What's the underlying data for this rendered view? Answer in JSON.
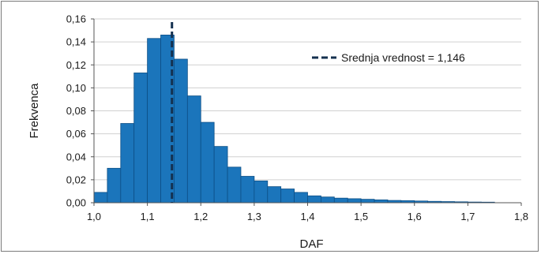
{
  "chart_data": {
    "type": "bar",
    "xlabel": "DAF",
    "ylabel": "Frekvenca",
    "xlim": [
      1.0,
      1.8
    ],
    "ylim": [
      0,
      0.16
    ],
    "bin_width": 0.025,
    "x_ticks": [
      "1,0",
      "1,1",
      "1,2",
      "1,3",
      "1,4",
      "1,5",
      "1,6",
      "1,7",
      "1,8"
    ],
    "y_ticks": [
      "0,00",
      "0,02",
      "0,04",
      "0,06",
      "0,08",
      "0,10",
      "0,12",
      "0,14",
      "0,16"
    ],
    "grid": true,
    "bars": [
      {
        "x": 1.0,
        "value": 0.009
      },
      {
        "x": 1.025,
        "value": 0.03
      },
      {
        "x": 1.05,
        "value": 0.069
      },
      {
        "x": 1.075,
        "value": 0.113
      },
      {
        "x": 1.1,
        "value": 0.143
      },
      {
        "x": 1.125,
        "value": 0.146
      },
      {
        "x": 1.15,
        "value": 0.125
      },
      {
        "x": 1.175,
        "value": 0.093
      },
      {
        "x": 1.2,
        "value": 0.07
      },
      {
        "x": 1.225,
        "value": 0.049
      },
      {
        "x": 1.25,
        "value": 0.031
      },
      {
        "x": 1.275,
        "value": 0.023
      },
      {
        "x": 1.3,
        "value": 0.019
      },
      {
        "x": 1.325,
        "value": 0.014
      },
      {
        "x": 1.35,
        "value": 0.012
      },
      {
        "x": 1.375,
        "value": 0.009
      },
      {
        "x": 1.4,
        "value": 0.006
      },
      {
        "x": 1.425,
        "value": 0.005
      },
      {
        "x": 1.45,
        "value": 0.004
      },
      {
        "x": 1.475,
        "value": 0.0035
      },
      {
        "x": 1.5,
        "value": 0.003
      },
      {
        "x": 1.525,
        "value": 0.0025
      },
      {
        "x": 1.55,
        "value": 0.002
      },
      {
        "x": 1.575,
        "value": 0.0018
      },
      {
        "x": 1.6,
        "value": 0.0015
      },
      {
        "x": 1.625,
        "value": 0.0012
      },
      {
        "x": 1.65,
        "value": 0.001
      },
      {
        "x": 1.675,
        "value": 0.0008
      },
      {
        "x": 1.7,
        "value": 0.0006
      },
      {
        "x": 1.725,
        "value": 0.0005
      }
    ],
    "mean_line": {
      "x": 1.146,
      "label": "Srednja vrednost = 1,146",
      "style": "dashed"
    },
    "legend_position": "top-right",
    "colors": {
      "bar_fill": "#1b75bb",
      "bar_edge": "#0d4f86",
      "mean_line": "#14304f",
      "grid": "#d0d0d0",
      "axis": "#555555"
    }
  }
}
